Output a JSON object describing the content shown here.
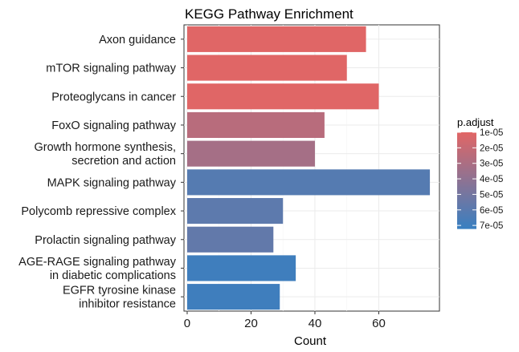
{
  "chart_data": {
    "type": "bar",
    "orientation": "horizontal",
    "title": "KEGG Pathway Enrichment",
    "xlabel": "Count",
    "ylabel": "",
    "xlim": [
      -1,
      79
    ],
    "xticks": [
      0,
      20,
      40,
      60
    ],
    "grid": true,
    "categories": [
      "Axon guidance",
      "mTOR signaling pathway",
      "Proteoglycans in cancer",
      "FoxO signaling pathway",
      "Growth hormone synthesis,\nsecretion and action",
      "MAPK signaling pathway",
      "Polycomb repressive complex",
      "Prolactin signaling pathway",
      "AGE-RAGE signaling pathway\nin diabetic complications",
      "EGFR tyrosine kinase\ninhibitor resistance"
    ],
    "values": [
      56,
      50,
      60,
      43,
      40,
      76,
      30,
      27,
      34,
      29
    ],
    "p_adjust": [
      1e-05,
      1e-05,
      1e-05,
      2.5e-05,
      3.2e-05,
      6.2e-05,
      5.9e-05,
      5.7e-05,
      7e-05,
      7e-05
    ],
    "color_scale": {
      "title": "p.adjust",
      "low_color": "#e06666",
      "high_color": "#3a7fc0",
      "range": [
        1e-05,
        7.2e-05
      ],
      "ticks": [
        1e-05,
        2e-05,
        3e-05,
        4e-05,
        5e-05,
        6e-05,
        7e-05
      ],
      "tick_labels": [
        "1e-05",
        "2e-05",
        "3e-05",
        "4e-05",
        "5e-05",
        "6e-05",
        "7e-05"
      ]
    },
    "legend_position": "right"
  }
}
